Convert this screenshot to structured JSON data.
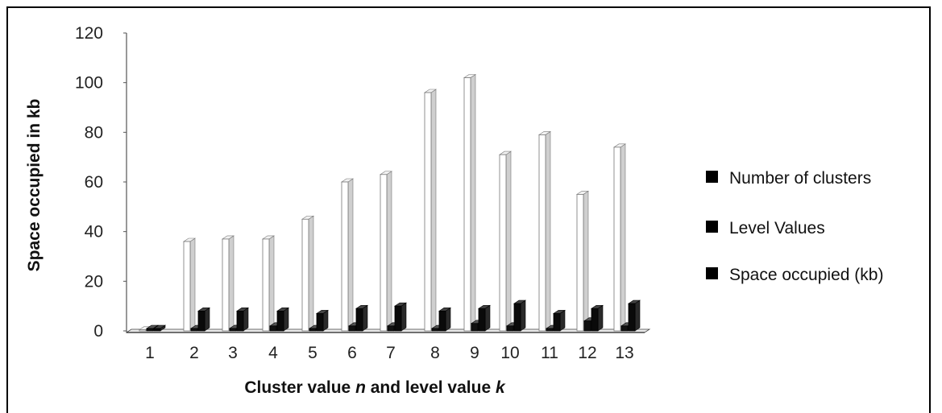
{
  "chart_data": {
    "type": "bar",
    "title": "",
    "xlabel_parts": [
      "Cluster value ",
      "n",
      " and level value ",
      "k"
    ],
    "ylabel": "Space occupied in kb",
    "ylim": [
      0,
      120
    ],
    "yticks": [
      "0",
      "20",
      "40",
      "60",
      "80",
      "100",
      "120"
    ],
    "categories": [
      "1",
      "2",
      "3",
      "4",
      "5",
      "6",
      "7",
      "8",
      "9",
      "10",
      "11",
      "12",
      "13"
    ],
    "series": [
      {
        "name": "Number of clusters",
        "values": [
          0,
          36,
          37,
          37,
          45,
          60,
          63,
          96,
          102,
          71,
          79,
          55,
          74
        ]
      },
      {
        "name": "Level Values",
        "values": [
          0,
          0,
          1,
          2,
          0,
          2,
          2,
          0,
          3,
          2,
          0,
          4,
          2
        ]
      },
      {
        "name": "Space occupied (kb)",
        "values": [
          0,
          8,
          8,
          8,
          7,
          9,
          10,
          8,
          9,
          11,
          7,
          9,
          11
        ]
      }
    ],
    "legend_position": "right",
    "grid": false,
    "colors": {
      "series0_face": "#ffffff",
      "series0_edge": "#777777",
      "series1": "#111111",
      "series2": "#0a0a0a",
      "floor": "#e8e8e8"
    }
  }
}
